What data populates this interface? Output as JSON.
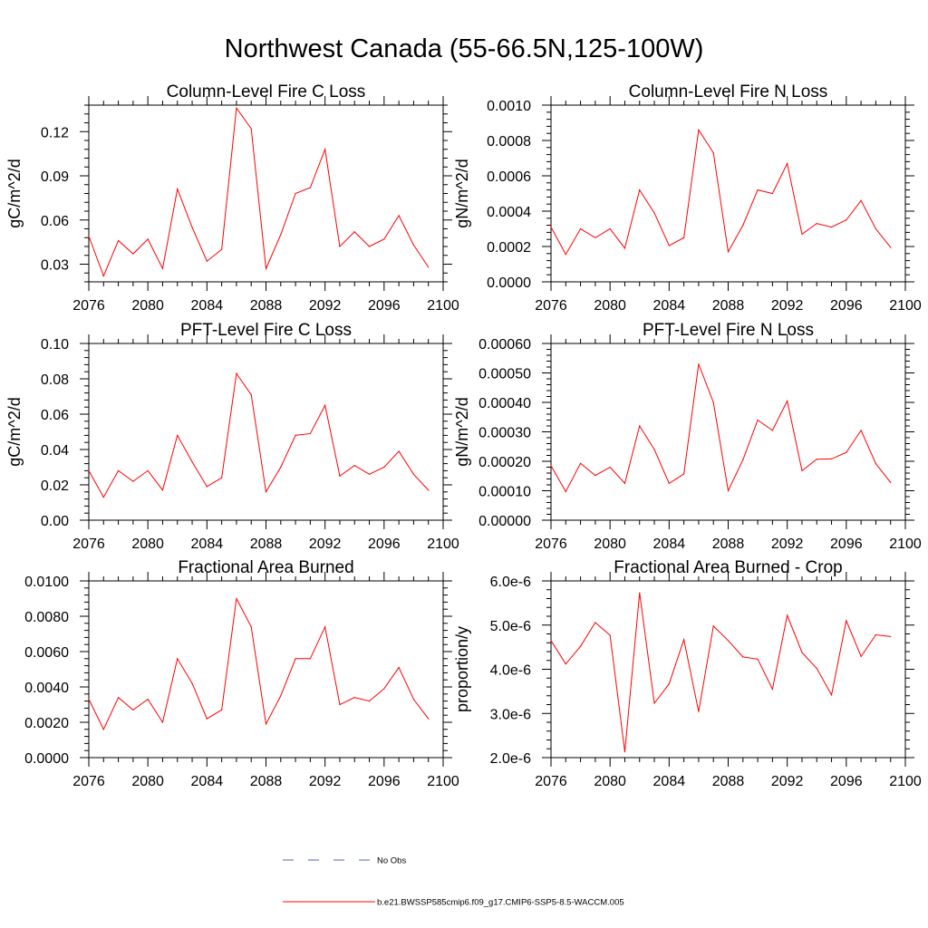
{
  "figure": {
    "title": "Northwest Canada (55-66.5N,125-100W)"
  },
  "colors": {
    "model_line": "#ff0000",
    "obs_line": "#5560b8",
    "axis": "#000000"
  },
  "legend": {
    "placement": "bottom-center",
    "entries": [
      {
        "label": "No Obs",
        "style": "dashed",
        "color": "#5560b8"
      },
      {
        "label": "b.e21.BWSSP585cmip6.f09_g17.CMIP6-SSP5-8.5-WACCM.005",
        "style": "solid",
        "color": "#ff0000"
      }
    ]
  },
  "chart_data": [
    {
      "type": "line",
      "title": "Column-Level Fire C Loss",
      "ylabel": "gC/m^2/d",
      "xlim": [
        2076,
        2100
      ],
      "ylim": [
        0.018,
        0.138
      ],
      "xticks": [
        2076,
        2080,
        2084,
        2088,
        2092,
        2096,
        2100
      ],
      "xtick_labels": [
        "2076",
        "2080",
        "2084",
        "2088",
        "2092",
        "2096",
        "2100"
      ],
      "yticks": [
        0.03,
        0.06,
        0.09,
        0.12
      ],
      "ytick_labels": [
        "0.03",
        "0.06",
        "0.09",
        "0.12"
      ],
      "x": [
        2076,
        2077,
        2078,
        2079,
        2080,
        2081,
        2082,
        2083,
        2084,
        2085,
        2086,
        2087,
        2088,
        2089,
        2090,
        2091,
        2092,
        2093,
        2094,
        2095,
        2096,
        2097,
        2098,
        2099
      ],
      "series": [
        {
          "name": "b.e21.BWSSP585cmip6.f09_g17.CMIP6-SSP5-8.5-WACCM.005",
          "values": [
            0.049,
            0.022,
            0.046,
            0.037,
            0.047,
            0.027,
            0.081,
            0.055,
            0.032,
            0.04,
            0.136,
            0.122,
            0.027,
            0.05,
            0.078,
            0.082,
            0.108,
            0.042,
            0.052,
            0.042,
            0.047,
            0.063,
            0.043,
            0.028
          ]
        }
      ]
    },
    {
      "type": "line",
      "title": "Column-Level Fire N Loss",
      "ylabel": "gN/m^2/d",
      "xlim": [
        2076,
        2100
      ],
      "ylim": [
        0,
        0.001
      ],
      "xticks": [
        2076,
        2080,
        2084,
        2088,
        2092,
        2096,
        2100
      ],
      "xtick_labels": [
        "2076",
        "2080",
        "2084",
        "2088",
        "2092",
        "2096",
        "2100"
      ],
      "yticks": [
        0,
        0.0002,
        0.0004,
        0.0006,
        0.0008,
        0.001
      ],
      "ytick_labels": [
        "0.0000",
        "0.0002",
        "0.0004",
        "0.0006",
        "0.0008",
        "0.0010"
      ],
      "x": [
        2076,
        2077,
        2078,
        2079,
        2080,
        2081,
        2082,
        2083,
        2084,
        2085,
        2086,
        2087,
        2088,
        2089,
        2090,
        2091,
        2092,
        2093,
        2094,
        2095,
        2096,
        2097,
        2098,
        2099
      ],
      "series": [
        {
          "name": "b.e21.BWSSP585cmip6.f09_g17.CMIP6-SSP5-8.5-WACCM.005",
          "values": [
            0.00031,
            0.000155,
            0.0003,
            0.00025,
            0.0003,
            0.00019,
            0.00052,
            0.00039,
            0.000205,
            0.00025,
            0.00086,
            0.00073,
            0.00017,
            0.00032,
            0.00052,
            0.0005,
            0.00067,
            0.00027,
            0.00033,
            0.00031,
            0.00035,
            0.00046,
            0.0003,
            0.000195
          ]
        }
      ]
    },
    {
      "type": "line",
      "title": "PFT-Level Fire C Loss",
      "ylabel": "gC/m^2/d",
      "xlim": [
        2076,
        2100
      ],
      "ylim": [
        0,
        0.1
      ],
      "xticks": [
        2076,
        2080,
        2084,
        2088,
        2092,
        2096,
        2100
      ],
      "xtick_labels": [
        "2076",
        "2080",
        "2084",
        "2088",
        "2092",
        "2096",
        "2100"
      ],
      "yticks": [
        0,
        0.02,
        0.04,
        0.06,
        0.08,
        0.1
      ],
      "ytick_labels": [
        "0.00",
        "0.02",
        "0.04",
        "0.06",
        "0.08",
        "0.10"
      ],
      "x": [
        2076,
        2077,
        2078,
        2079,
        2080,
        2081,
        2082,
        2083,
        2084,
        2085,
        2086,
        2087,
        2088,
        2089,
        2090,
        2091,
        2092,
        2093,
        2094,
        2095,
        2096,
        2097,
        2098,
        2099
      ],
      "series": [
        {
          "name": "b.e21.BWSSP585cmip6.f09_g17.CMIP6-SSP5-8.5-WACCM.005",
          "values": [
            0.028,
            0.013,
            0.028,
            0.022,
            0.028,
            0.017,
            0.048,
            0.033,
            0.019,
            0.024,
            0.083,
            0.071,
            0.016,
            0.03,
            0.048,
            0.049,
            0.065,
            0.025,
            0.031,
            0.026,
            0.03,
            0.039,
            0.026,
            0.017
          ]
        }
      ]
    },
    {
      "type": "line",
      "title": "PFT-Level Fire N Loss",
      "ylabel": "gN/m^2/d",
      "xlim": [
        2076,
        2100
      ],
      "ylim": [
        0,
        0.0006
      ],
      "xticks": [
        2076,
        2080,
        2084,
        2088,
        2092,
        2096,
        2100
      ],
      "xtick_labels": [
        "2076",
        "2080",
        "2084",
        "2088",
        "2092",
        "2096",
        "2100"
      ],
      "yticks": [
        0,
        0.0001,
        0.0002,
        0.0003,
        0.0004,
        0.0005,
        0.0006
      ],
      "ytick_labels": [
        "0.00000",
        "0.00010",
        "0.00020",
        "0.00030",
        "0.00040",
        "0.00050",
        "0.00060"
      ],
      "x": [
        2076,
        2077,
        2078,
        2079,
        2080,
        2081,
        2082,
        2083,
        2084,
        2085,
        2086,
        2087,
        2088,
        2089,
        2090,
        2091,
        2092,
        2093,
        2094,
        2095,
        2096,
        2097,
        2098,
        2099
      ],
      "series": [
        {
          "name": "b.e21.BWSSP585cmip6.f09_g17.CMIP6-SSP5-8.5-WACCM.005",
          "values": [
            0.000185,
            9.7e-05,
            0.000193,
            0.000152,
            0.00018,
            0.000125,
            0.00032,
            0.00024,
            0.000125,
            0.000157,
            0.00053,
            0.0004,
            0.0001,
            0.000205,
            0.00034,
            0.000305,
            0.000405,
            0.000168,
            0.000207,
            0.000208,
            0.00023,
            0.000305,
            0.000192,
            0.000128
          ]
        }
      ]
    },
    {
      "type": "line",
      "title": "Fractional Area Burned",
      "ylabel": "",
      "xlim": [
        2076,
        2100
      ],
      "ylim": [
        0,
        0.01
      ],
      "xticks": [
        2076,
        2080,
        2084,
        2088,
        2092,
        2096,
        2100
      ],
      "xtick_labels": [
        "2076",
        "2080",
        "2084",
        "2088",
        "2092",
        "2096",
        "2100"
      ],
      "yticks": [
        0,
        0.002,
        0.004,
        0.006,
        0.008,
        0.01
      ],
      "ytick_labels": [
        "0.0000",
        "0.0020",
        "0.0040",
        "0.0060",
        "0.0080",
        "0.0100"
      ],
      "x": [
        2076,
        2077,
        2078,
        2079,
        2080,
        2081,
        2082,
        2083,
        2084,
        2085,
        2086,
        2087,
        2088,
        2089,
        2090,
        2091,
        2092,
        2093,
        2094,
        2095,
        2096,
        2097,
        2098,
        2099
      ],
      "series": [
        {
          "name": "b.e21.BWSSP585cmip6.f09_g17.CMIP6-SSP5-8.5-WACCM.005",
          "values": [
            0.0033,
            0.0016,
            0.0034,
            0.0027,
            0.0033,
            0.002,
            0.0056,
            0.0042,
            0.0022,
            0.0027,
            0.009,
            0.0074,
            0.0019,
            0.0035,
            0.0056,
            0.0056,
            0.0074,
            0.003,
            0.0034,
            0.0032,
            0.0039,
            0.0051,
            0.0033,
            0.0022
          ]
        }
      ]
    },
    {
      "type": "line",
      "title": "Fractional Area Burned - Crop",
      "ylabel": "proportion/y",
      "xlim": [
        2076,
        2100
      ],
      "ylim": [
        2e-06,
        6e-06
      ],
      "xticks": [
        2076,
        2080,
        2084,
        2088,
        2092,
        2096,
        2100
      ],
      "xtick_labels": [
        "2076",
        "2080",
        "2084",
        "2088",
        "2092",
        "2096",
        "2100"
      ],
      "yticks": [
        2e-06,
        3e-06,
        4e-06,
        5e-06,
        6e-06
      ],
      "ytick_labels": [
        "2.0e-6",
        "3.0e-6",
        "4.0e-6",
        "5.0e-6",
        "6.0e-6"
      ],
      "x": [
        2076,
        2077,
        2078,
        2079,
        2080,
        2081,
        2082,
        2083,
        2084,
        2085,
        2086,
        2087,
        2088,
        2089,
        2090,
        2091,
        2092,
        2093,
        2094,
        2095,
        2096,
        2097,
        2098,
        2099
      ],
      "series": [
        {
          "name": "b.e21.BWSSP585cmip6.f09_g17.CMIP6-SSP5-8.5-WACCM.005",
          "values": [
            4.65e-06,
            4.12e-06,
            4.52e-06,
            5.06e-06,
            4.77e-06,
            2.13e-06,
            5.73e-06,
            3.23e-06,
            3.67e-06,
            4.67e-06,
            3.04e-06,
            4.98e-06,
            4.65e-06,
            4.28e-06,
            4.23e-06,
            3.55e-06,
            5.22e-06,
            4.38e-06,
            4.02e-06,
            3.42e-06,
            5.1e-06,
            4.29e-06,
            4.78e-06,
            4.74e-06
          ]
        }
      ]
    }
  ]
}
